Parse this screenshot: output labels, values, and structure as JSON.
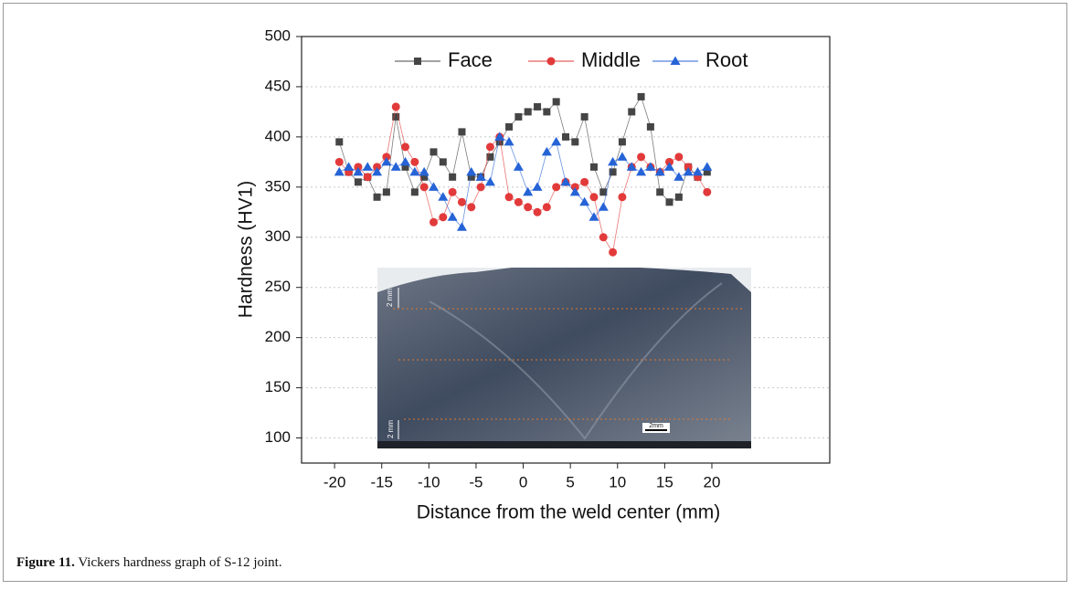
{
  "chart_data": {
    "type": "line",
    "xlabel": "Distance from the weld center (mm)",
    "ylabel": "Hardness (HV1)",
    "x": [
      -19.5,
      -18.5,
      -17.5,
      -16.5,
      -15.5,
      -14.5,
      -13.5,
      -12.5,
      -11.5,
      -10.5,
      -9.5,
      -8.5,
      -7.5,
      -6.5,
      -5.5,
      -4.5,
      -3.5,
      -2.5,
      -1.5,
      -0.5,
      0.5,
      1.5,
      2.5,
      3.5,
      4.5,
      5.5,
      6.5,
      7.5,
      8.5,
      9.5,
      10.5,
      11.5,
      12.5,
      13.5,
      14.5,
      15.5,
      16.5,
      17.5,
      18.5,
      19.5
    ],
    "series": [
      {
        "name": "Face",
        "color": "#454545",
        "marker": "square",
        "values": [
          395,
          365,
          355,
          360,
          340,
          345,
          420,
          370,
          345,
          360,
          385,
          375,
          360,
          405,
          360,
          360,
          380,
          395,
          410,
          420,
          425,
          430,
          425,
          435,
          400,
          395,
          420,
          370,
          345,
          365,
          395,
          425,
          440,
          410,
          345,
          335,
          340,
          370,
          360,
          365
        ]
      },
      {
        "name": "Middle",
        "color": "#e23a3a",
        "marker": "circle",
        "values": [
          375,
          365,
          370,
          360,
          370,
          380,
          430,
          390,
          375,
          350,
          315,
          320,
          345,
          335,
          330,
          350,
          390,
          400,
          340,
          335,
          330,
          325,
          330,
          350,
          355,
          350,
          355,
          340,
          300,
          285,
          340,
          370,
          380,
          370,
          365,
          375,
          380,
          370,
          360,
          345
        ]
      },
      {
        "name": "Root",
        "color": "#2563d6",
        "marker": "triangle",
        "values": [
          365,
          370,
          365,
          370,
          365,
          375,
          370,
          375,
          365,
          365,
          350,
          340,
          320,
          310,
          365,
          360,
          355,
          400,
          395,
          370,
          345,
          350,
          385,
          395,
          355,
          345,
          335,
          320,
          330,
          375,
          380,
          370,
          365,
          370,
          365,
          370,
          360,
          365,
          365,
          370
        ]
      }
    ],
    "xlim": [
      -23.5,
      32.5
    ],
    "xticks": [
      -20,
      -15,
      -10,
      -5,
      0,
      5,
      10,
      15,
      20
    ],
    "ylim": [
      75,
      500
    ],
    "yticks": [
      100,
      150,
      200,
      250,
      300,
      350,
      400,
      450,
      500
    ],
    "grid": true,
    "legend": "top",
    "inset": {
      "labels": [
        "2 mm",
        "2 mm",
        "2mm"
      ]
    }
  },
  "caption": {
    "label": "Figure 11.",
    "text": "Vickers hardness graph of S-12 joint."
  }
}
